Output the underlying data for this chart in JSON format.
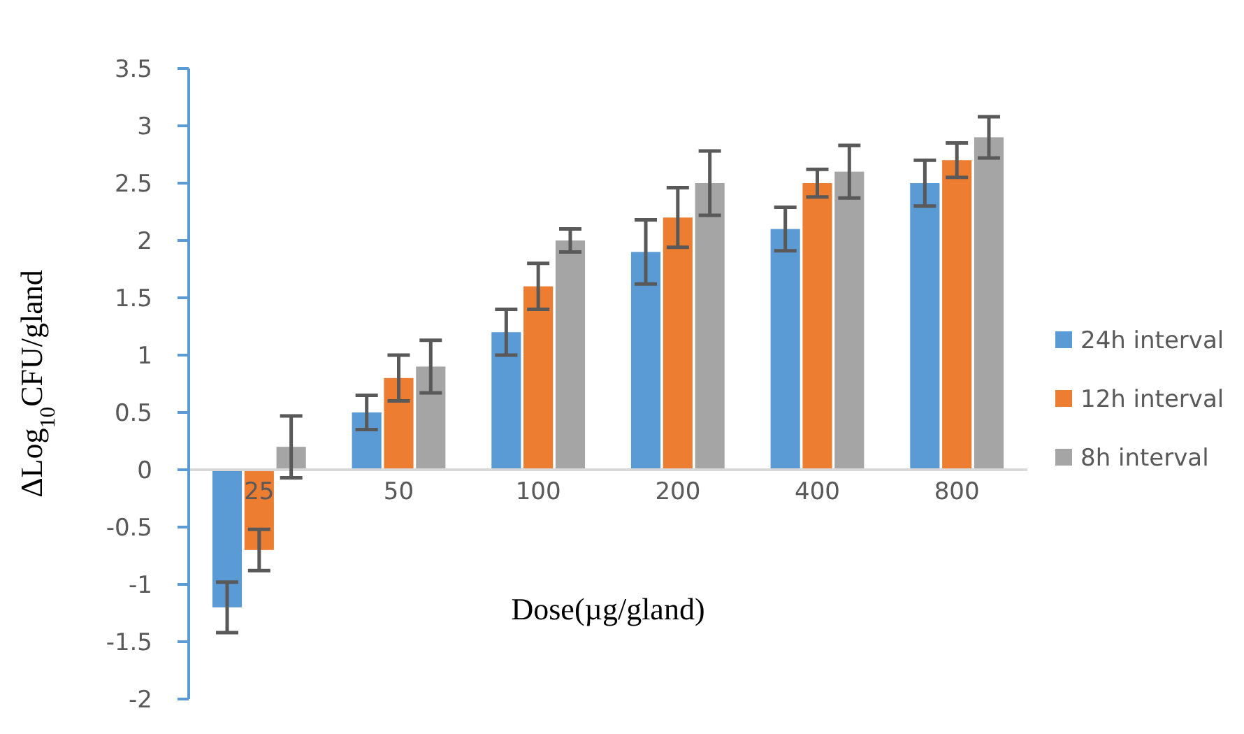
{
  "chart_data": {
    "type": "bar",
    "xlabel": "Dose(µg/gland)",
    "ylabel": "ΔLog$_{10}$CFU/gland",
    "categories": [
      "25",
      "50",
      "100",
      "200",
      "400",
      "800"
    ],
    "series": [
      {
        "name": "24h interval",
        "color": "#5b9bd5",
        "values": [
          -1.2,
          0.5,
          1.2,
          1.9,
          2.1,
          2.5
        ],
        "errors": [
          0.22,
          0.15,
          0.2,
          0.28,
          0.19,
          0.2
        ]
      },
      {
        "name": "12h interval",
        "color": "#ed7d31",
        "values": [
          -0.7,
          0.8,
          1.6,
          2.2,
          2.5,
          2.7
        ],
        "errors": [
          0.18,
          0.2,
          0.2,
          0.26,
          0.12,
          0.15
        ]
      },
      {
        "name": "8h interval",
        "color": "#a5a5a5",
        "values": [
          0.2,
          0.9,
          2.0,
          2.5,
          2.6,
          2.9
        ],
        "errors": [
          0.27,
          0.23,
          0.1,
          0.28,
          0.23,
          0.18
        ]
      }
    ],
    "ylim": [
      -2,
      3.5
    ],
    "yticks": [
      -2,
      -1.5,
      -1,
      -0.5,
      0,
      0.5,
      1,
      1.5,
      2,
      2.5,
      3,
      3.5
    ],
    "grid": false,
    "legend": "right"
  }
}
